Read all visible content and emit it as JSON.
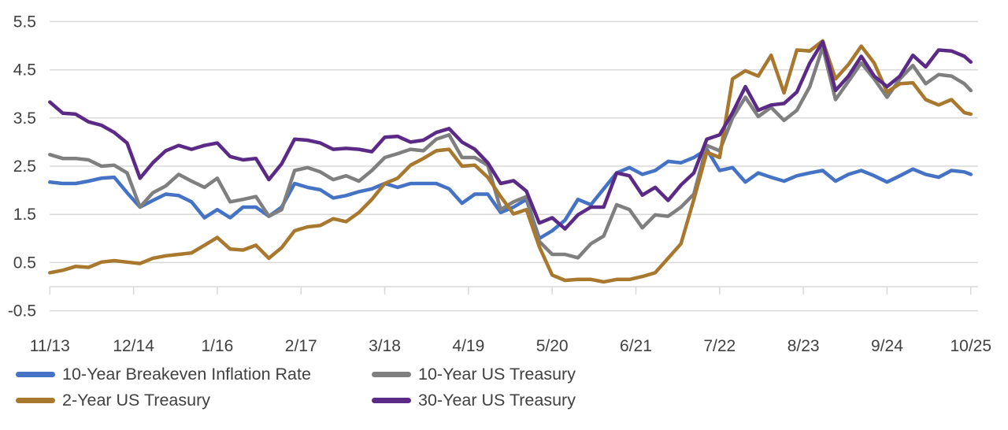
{
  "chart_data": {
    "type": "line",
    "title": "",
    "xlabel": "",
    "ylabel": "",
    "ylim": [
      -0.5,
      5.5
    ],
    "yticks": [
      "5.5",
      "4.5",
      "3.5",
      "2.5",
      "1.5",
      "0.5",
      "-0.5"
    ],
    "xticks": [
      "11/13",
      "12/14",
      "1/16",
      "2/17",
      "3/18",
      "4/19",
      "5/20",
      "6/21",
      "7/22",
      "8/23",
      "9/24",
      "10/25"
    ],
    "grid": "horizontal",
    "legend_position": "bottom",
    "x": [
      "2013-11",
      "2014-01",
      "2014-03",
      "2014-05",
      "2014-07",
      "2014-09",
      "2014-11",
      "2015-01",
      "2015-03",
      "2015-05",
      "2015-07",
      "2015-09",
      "2015-11",
      "2016-01",
      "2016-03",
      "2016-05",
      "2016-07",
      "2016-09",
      "2016-11",
      "2017-01",
      "2017-03",
      "2017-05",
      "2017-07",
      "2017-09",
      "2017-11",
      "2018-01",
      "2018-03",
      "2018-05",
      "2018-07",
      "2018-09",
      "2018-11",
      "2019-01",
      "2019-03",
      "2019-05",
      "2019-07",
      "2019-09",
      "2019-11",
      "2020-01",
      "2020-03",
      "2020-05",
      "2020-07",
      "2020-09",
      "2020-11",
      "2021-01",
      "2021-03",
      "2021-05",
      "2021-07",
      "2021-09",
      "2021-11",
      "2022-01",
      "2022-03",
      "2022-05",
      "2022-07",
      "2022-09",
      "2022-11",
      "2023-01",
      "2023-03",
      "2023-05",
      "2023-07",
      "2023-09",
      "2023-11",
      "2024-01",
      "2024-03",
      "2024-05",
      "2024-07",
      "2024-09",
      "2024-11",
      "2025-01",
      "2025-03",
      "2025-05",
      "2025-07",
      "2025-09",
      "2025-10"
    ],
    "series": [
      {
        "name": "10-Year Breakeven Inflation Rate",
        "color": "#4472C4",
        "values": [
          2.17,
          2.14,
          2.14,
          2.19,
          2.25,
          2.27,
          1.95,
          1.65,
          1.79,
          1.92,
          1.89,
          1.76,
          1.43,
          1.6,
          1.43,
          1.65,
          1.65,
          1.46,
          1.65,
          2.14,
          2.06,
          2.01,
          1.84,
          1.89,
          1.97,
          2.03,
          2.14,
          2.06,
          2.14,
          2.14,
          2.14,
          2.03,
          1.73,
          1.92,
          1.92,
          1.54,
          1.65,
          1.81,
          1.0,
          1.16,
          1.38,
          1.81,
          1.7,
          2.03,
          2.36,
          2.47,
          2.33,
          2.41,
          2.6,
          2.57,
          2.68,
          2.85,
          2.41,
          2.47,
          2.17,
          2.36,
          2.27,
          2.19,
          2.3,
          2.36,
          2.41,
          2.19,
          2.33,
          2.41,
          2.3,
          2.17,
          2.3,
          2.44,
          2.33,
          2.27,
          2.41,
          2.38,
          2.33
        ]
      },
      {
        "name": "10-Year US Treasury",
        "color": "#7F7F7F",
        "values": [
          2.74,
          2.66,
          2.66,
          2.63,
          2.5,
          2.52,
          2.36,
          1.65,
          1.95,
          2.09,
          2.33,
          2.19,
          2.06,
          2.25,
          1.76,
          1.81,
          1.87,
          1.46,
          1.6,
          2.41,
          2.47,
          2.38,
          2.22,
          2.3,
          2.19,
          2.41,
          2.68,
          2.76,
          2.85,
          2.82,
          3.06,
          3.15,
          2.68,
          2.68,
          2.52,
          1.6,
          1.76,
          1.87,
          0.94,
          0.67,
          0.67,
          0.6,
          0.89,
          1.05,
          1.7,
          1.6,
          1.22,
          1.49,
          1.46,
          1.65,
          1.92,
          2.93,
          2.82,
          3.5,
          3.93,
          3.53,
          3.72,
          3.45,
          3.66,
          4.15,
          4.97,
          3.88,
          4.26,
          4.64,
          4.31,
          3.93,
          4.31,
          4.59,
          4.21,
          4.4,
          4.37,
          4.21,
          4.07
        ]
      },
      {
        "name": "2-Year US Treasury",
        "color": "#A8782E",
        "values": [
          0.29,
          0.34,
          0.42,
          0.4,
          0.51,
          0.54,
          0.51,
          0.48,
          0.59,
          0.64,
          0.67,
          0.7,
          0.86,
          1.02,
          0.78,
          0.76,
          0.86,
          0.59,
          0.81,
          1.16,
          1.24,
          1.27,
          1.41,
          1.35,
          1.54,
          1.81,
          2.14,
          2.25,
          2.52,
          2.66,
          2.82,
          2.85,
          2.5,
          2.52,
          2.27,
          1.87,
          1.51,
          1.6,
          0.83,
          0.24,
          0.13,
          0.15,
          0.15,
          0.1,
          0.15,
          0.15,
          0.21,
          0.29,
          0.59,
          0.89,
          1.81,
          2.79,
          2.68,
          4.31,
          4.48,
          4.37,
          4.8,
          4.02,
          4.91,
          4.89,
          5.1,
          4.31,
          4.61,
          4.99,
          4.64,
          4.04,
          4.21,
          4.23,
          3.88,
          3.77,
          3.88,
          3.61,
          3.58
        ]
      },
      {
        "name": "30-Year US Treasury",
        "color": "#5B2A86",
        "values": [
          3.83,
          3.6,
          3.58,
          3.42,
          3.35,
          3.2,
          2.98,
          2.25,
          2.57,
          2.82,
          2.93,
          2.85,
          2.93,
          2.98,
          2.7,
          2.63,
          2.66,
          2.22,
          2.55,
          3.06,
          3.04,
          2.98,
          2.85,
          2.87,
          2.85,
          2.8,
          3.1,
          3.12,
          3.0,
          3.04,
          3.2,
          3.28,
          3.0,
          2.85,
          2.57,
          2.14,
          2.2,
          1.98,
          1.32,
          1.43,
          1.2,
          1.49,
          1.65,
          1.65,
          2.36,
          2.3,
          1.9,
          2.06,
          1.79,
          2.11,
          2.36,
          3.06,
          3.15,
          3.61,
          4.15,
          3.66,
          3.77,
          3.8,
          4.04,
          4.64,
          5.08,
          4.07,
          4.37,
          4.78,
          4.37,
          4.15,
          4.37,
          4.8,
          4.56,
          4.91,
          4.89,
          4.78,
          4.66
        ]
      }
    ]
  }
}
